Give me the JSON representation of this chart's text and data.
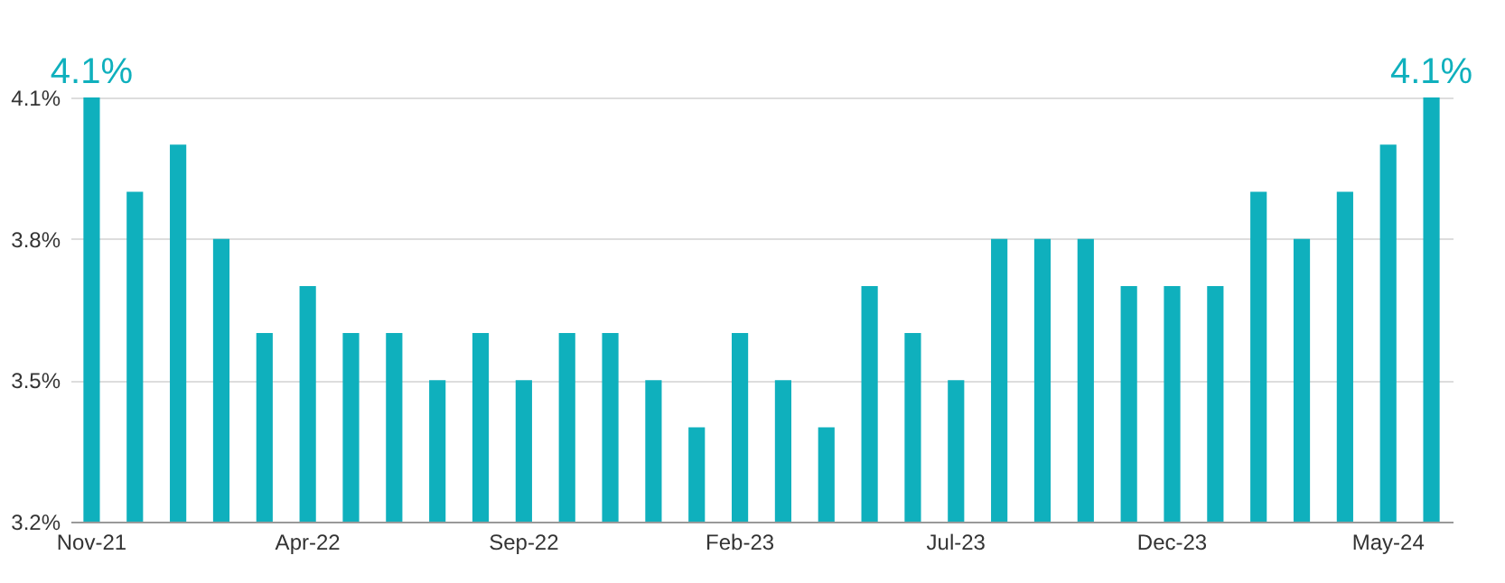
{
  "chart_data": {
    "type": "bar",
    "categories": [
      "Nov-21",
      null,
      null,
      null,
      null,
      "Apr-22",
      null,
      null,
      null,
      null,
      "Sep-22",
      null,
      null,
      null,
      null,
      "Feb-23",
      null,
      null,
      null,
      null,
      "Jul-23",
      null,
      null,
      null,
      null,
      "Dec-23",
      null,
      null,
      null,
      null,
      "May-24",
      null
    ],
    "values": [
      4.1,
      3.9,
      4.0,
      3.8,
      3.6,
      3.7,
      3.6,
      3.6,
      3.5,
      3.6,
      3.5,
      3.6,
      3.6,
      3.5,
      3.4,
      3.6,
      3.5,
      3.4,
      3.7,
      3.6,
      3.5,
      3.8,
      3.8,
      3.8,
      3.7,
      3.7,
      3.7,
      3.9,
      3.8,
      3.9,
      4.0,
      4.1
    ],
    "value_labels": [
      "4.1%",
      null,
      null,
      null,
      null,
      null,
      null,
      null,
      null,
      null,
      null,
      null,
      null,
      null,
      null,
      null,
      null,
      null,
      null,
      null,
      null,
      null,
      null,
      null,
      null,
      null,
      null,
      null,
      null,
      null,
      null,
      "4.1%"
    ],
    "color": "#0fb0bd",
    "ylim": [
      3.2,
      4.1
    ],
    "yticks": [
      {
        "value": 3.2,
        "label": "3.2%"
      },
      {
        "value": 3.5,
        "label": "3.5%"
      },
      {
        "value": 3.8,
        "label": "3.8%"
      },
      {
        "value": 4.1,
        "label": "4.1%"
      }
    ],
    "grid": "y"
  }
}
